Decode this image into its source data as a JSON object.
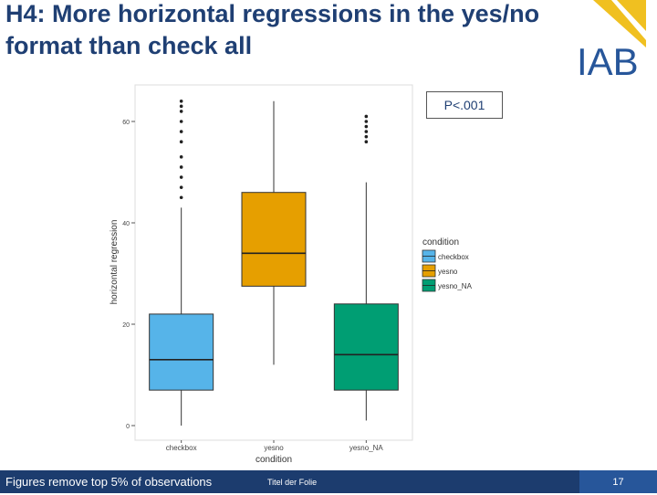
{
  "slide": {
    "title": "H4: More horizontal regressions in the yes/no format than check all",
    "logo_text": "IAB",
    "p_value": "P<.001",
    "footer_note": "Figures remove top 5% of observations",
    "footer_title": "Titel der Folie",
    "page_number": "17"
  },
  "colors": {
    "title": "#1f3f73",
    "footer": "#1c3c6e",
    "footer_accent": "#27569a",
    "logo_blue": "#27569a",
    "logo_yellow": "#f0c020"
  },
  "chart_data": {
    "type": "boxplot",
    "title": "",
    "xlabel": "condition",
    "ylabel": "horizontal regression",
    "ylim": [
      -2,
      65
    ],
    "yticks": [
      0,
      20,
      40,
      60
    ],
    "ytick_labels": [
      "0",
      "20",
      "40",
      "60"
    ],
    "categories": [
      "checkbox",
      "yesno",
      "yesno_NA"
    ],
    "series": [
      {
        "name": "checkbox",
        "color": "#56b4e9",
        "min": 0,
        "q1": 7,
        "median": 13,
        "q3": 22,
        "max": 43,
        "outliers": [
          45,
          47,
          49,
          51,
          53,
          56,
          58,
          60,
          62,
          63,
          64
        ]
      },
      {
        "name": "yesno",
        "color": "#e69f00",
        "min": 12,
        "q1": 27.5,
        "median": 34,
        "q3": 46,
        "max": 64,
        "outliers": []
      },
      {
        "name": "yesno_NA",
        "color": "#009e73",
        "min": 1,
        "q1": 7,
        "median": 14,
        "q3": 24,
        "max": 48,
        "outliers": [
          56,
          57,
          58,
          59,
          60,
          61
        ]
      }
    ],
    "legend": {
      "title": "condition",
      "position": "right",
      "items": [
        "checkbox",
        "yesno",
        "yesno_NA"
      ]
    },
    "grid": false
  }
}
